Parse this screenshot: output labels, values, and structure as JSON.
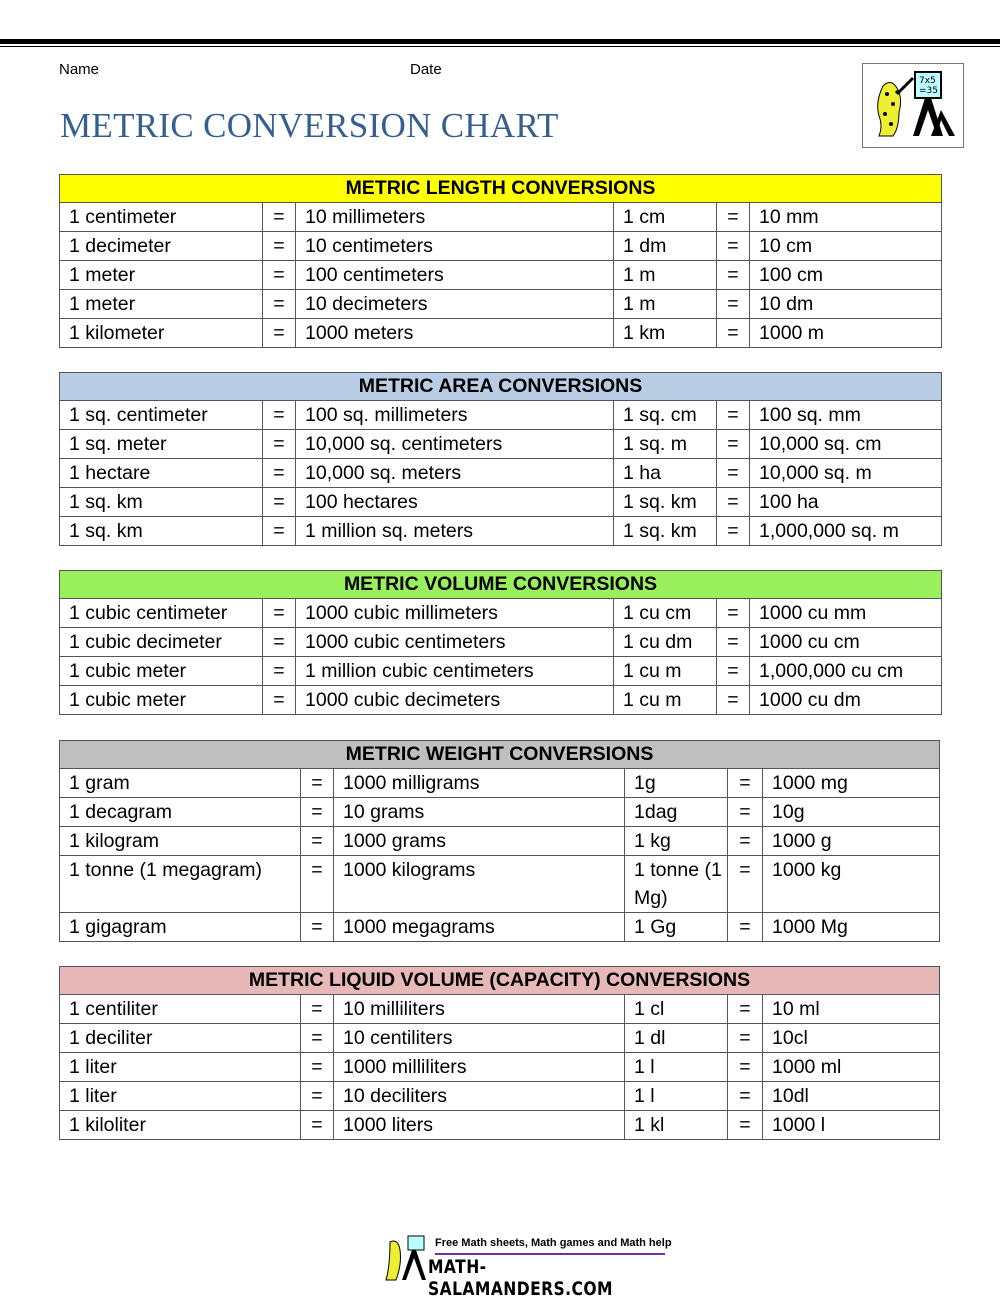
{
  "header": {
    "name_label": "Name",
    "date_label": "Date",
    "title": "METRIC CONVERSION CHART"
  },
  "tables": [
    {
      "title": "METRIC LENGTH CONVERSIONS",
      "color": "#ffff00",
      "rows": [
        [
          "1 centimeter",
          "=",
          "10 millimeters",
          "1 cm",
          "=",
          "10 mm"
        ],
        [
          "1 decimeter",
          "=",
          "10 centimeters",
          "1 dm",
          "=",
          "10 cm"
        ],
        [
          "1 meter",
          "=",
          "100 centimeters",
          "1 m",
          "=",
          "100 cm"
        ],
        [
          "1 meter",
          "=",
          "10 decimeters",
          "1 m",
          "=",
          "10 dm"
        ],
        [
          "1 kilometer",
          "=",
          "1000 meters",
          "1 km",
          "=",
          "1000 m"
        ]
      ]
    },
    {
      "title": "METRIC AREA CONVERSIONS",
      "color": "#b8cce4",
      "rows": [
        [
          "1 sq. centimeter",
          "=",
          "100 sq. millimeters",
          "1 sq. cm",
          "=",
          "100 sq. mm"
        ],
        [
          "1 sq. meter",
          "=",
          "10,000 sq. centimeters",
          "1 sq. m",
          "=",
          "10,000 sq. cm"
        ],
        [
          "1 hectare",
          "=",
          "10,000 sq. meters",
          "1 ha",
          "=",
          "10,000 sq. m"
        ],
        [
          "1 sq. km",
          "=",
          "100 hectares",
          "1 sq. km",
          "=",
          "100 ha"
        ],
        [
          "1 sq. km",
          "=",
          "1 million sq. meters",
          "1 sq. km",
          "=",
          "1,000,000 sq. m"
        ]
      ]
    },
    {
      "title": "METRIC VOLUME CONVERSIONS",
      "color": "#99f05c",
      "rows": [
        [
          "1 cubic centimeter",
          "=",
          "1000 cubic millimeters",
          "1 cu cm",
          "=",
          "1000 cu mm"
        ],
        [
          "1 cubic decimeter",
          "=",
          "1000 cubic centimeters",
          "1 cu dm",
          "=",
          "1000 cu cm"
        ],
        [
          "1 cubic meter",
          "=",
          "1 million cubic centimeters",
          "1 cu m",
          "=",
          "1,000,000 cu cm"
        ],
        [
          "1 cubic meter",
          "=",
          "1000 cubic decimeters",
          "1 cu m",
          "=",
          "1000 cu dm"
        ]
      ]
    },
    {
      "title": "METRIC WEIGHT CONVERSIONS",
      "color": "#bfbfbf",
      "rows": [
        [
          "1 gram",
          "=",
          "1000 milligrams",
          "1g",
          "=",
          "1000 mg"
        ],
        [
          "1 decagram",
          "=",
          "10 grams",
          "1dag",
          "=",
          "10g"
        ],
        [
          "1 kilogram",
          "=",
          "1000 grams",
          "1 kg",
          "=",
          "1000 g"
        ],
        [
          "1 tonne (1 megagram)",
          "=",
          "1000 kilograms",
          "1 tonne (1 Mg)",
          "=",
          "1000 kg"
        ],
        [
          "1 gigagram",
          "=",
          "1000 megagrams",
          "1 Gg",
          "=",
          "1000 Mg"
        ]
      ]
    },
    {
      "title": "METRIC LIQUID VOLUME (CAPACITY) CONVERSIONS",
      "color": "#e6b8b7",
      "rows": [
        [
          "1 centiliter",
          "=",
          "10 milliliters",
          "1 cl",
          "=",
          "10 ml"
        ],
        [
          "1 deciliter",
          "=",
          "10 centiliters",
          "1 dl",
          "=",
          "10cl"
        ],
        [
          "1 liter",
          "=",
          "1000 milliliters",
          "1 l",
          "=",
          "1000 ml"
        ],
        [
          "1 liter",
          "=",
          "10 deciliters",
          "1 l",
          "=",
          "10dl"
        ],
        [
          "1 kiloliter",
          "=",
          "1000 liters",
          "1 kl",
          "=",
          "1000 l"
        ]
      ]
    }
  ],
  "footer": {
    "tagline": "Free Math sheets, Math games and Math help",
    "site": "MATH-SALAMANDERS.COM"
  },
  "logo": {
    "board_text": "7x5 =35"
  }
}
